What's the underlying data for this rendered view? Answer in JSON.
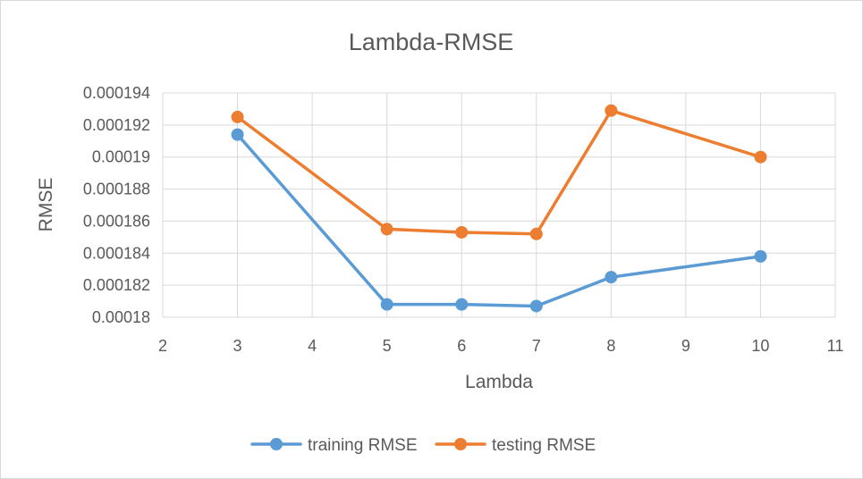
{
  "chart_data": {
    "type": "line",
    "title": "Lambda-RMSE",
    "xlabel": "Lambda",
    "ylabel": "RMSE",
    "xlim": [
      2,
      11
    ],
    "ylim": [
      0.00018,
      0.000194
    ],
    "xticks": [
      2,
      3,
      4,
      5,
      6,
      7,
      8,
      9,
      10,
      11
    ],
    "xtick_labels": [
      "2",
      "3",
      "4",
      "5",
      "6",
      "7",
      "8",
      "9",
      "10",
      "11"
    ],
    "yticks": [
      0.00018,
      0.000182,
      0.000184,
      0.000186,
      0.000188,
      0.00019,
      0.000192,
      0.000194
    ],
    "ytick_labels": [
      "0.00018",
      "0.000182",
      "0.000184",
      "0.000186",
      "0.000188",
      "0.00019",
      "0.000192",
      "0.000194"
    ],
    "grid": true,
    "legend_position": "bottom",
    "x": [
      3,
      5,
      6,
      7,
      8,
      10
    ],
    "series": [
      {
        "name": "training RMSE",
        "color": "#5b9bd5",
        "values": [
          0.0001914,
          0.0001808,
          0.0001808,
          0.0001807,
          0.0001825,
          0.0001838
        ]
      },
      {
        "name": "testing RMSE",
        "color": "#ed7d31",
        "values": [
          0.0001925,
          0.0001855,
          0.0001853,
          0.0001852,
          0.0001929,
          0.00019
        ]
      }
    ]
  }
}
